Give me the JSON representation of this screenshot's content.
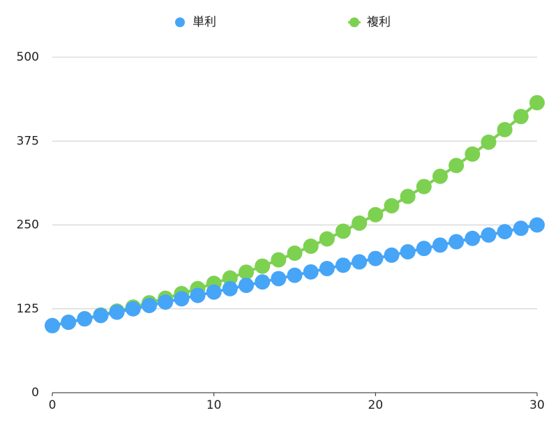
{
  "chart_data": {
    "type": "scatter",
    "x": [
      0,
      1,
      2,
      3,
      4,
      5,
      6,
      7,
      8,
      9,
      10,
      11,
      12,
      13,
      14,
      15,
      16,
      17,
      18,
      19,
      20,
      21,
      22,
      23,
      24,
      25,
      26,
      27,
      28,
      29,
      30
    ],
    "series": [
      {
        "name": "単利",
        "color": "#46a5f7",
        "values": [
          100,
          105,
          110,
          115,
          120,
          125,
          130,
          135,
          140,
          145,
          150,
          155,
          160,
          165,
          170,
          175,
          180,
          185,
          190,
          195,
          200,
          205,
          210,
          215,
          220,
          225,
          230,
          235,
          240,
          245,
          250
        ]
      },
      {
        "name": "複利",
        "color": "#7dd151",
        "values": [
          100,
          105,
          110.3,
          115.8,
          121.6,
          127.6,
          134,
          140.7,
          147.7,
          155.1,
          162.9,
          171,
          179.6,
          188.6,
          198,
          207.9,
          218.3,
          229.2,
          240.7,
          252.7,
          265.3,
          278.6,
          292.5,
          307.2,
          322.5,
          338.6,
          355.6,
          373.3,
          392,
          411.6,
          432.2
        ]
      }
    ],
    "xlim": [
      0,
      30
    ],
    "xticks": [
      0,
      10,
      20,
      30
    ],
    "ylim": [
      0,
      500
    ],
    "yticks": [
      0,
      125,
      250,
      375,
      500
    ],
    "grid": true,
    "legend": "top"
  }
}
